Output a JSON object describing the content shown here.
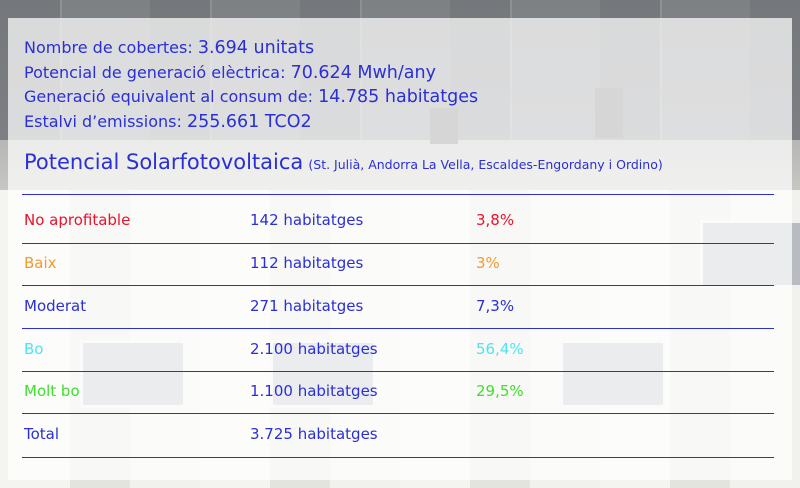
{
  "stats": [
    {
      "label": "Nombre de cobertes:",
      "value": "3.694 unitats"
    },
    {
      "label": "Potencial de generació elèctrica:",
      "value": "70.624 Mwh/any"
    },
    {
      "label": "Generació equivalent al consum de:",
      "value": "14.785 habitatges"
    },
    {
      "label": "Estalvi d’emissions:",
      "value": "255.661 TCO2"
    }
  ],
  "title": "Potencial Solarfotovoltaica",
  "subtitle": "(St. Julià, Andorra La Vella, Escaldes-Engordany i Ordino)",
  "rows": [
    {
      "category": "No aprofitable",
      "dwellings": "142 habitatges",
      "percent": "3,8%",
      "color": "#e8132c"
    },
    {
      "category": "Baix",
      "dwellings": "112 habitatges",
      "percent": "3%",
      "color": "#f29a2e"
    },
    {
      "category": "Moderat",
      "dwellings": "271 habitatges",
      "percent": "7,3%",
      "color": "#2a2fd6"
    },
    {
      "category": "Bo",
      "dwellings": "2.100  habitatges",
      "percent": "56,4%",
      "color": "#4fe3ef"
    },
    {
      "category": "Molt bo",
      "dwellings": "1.100  habitatges",
      "percent": "29,5%",
      "color": "#3fe02c"
    },
    {
      "category": "Total",
      "dwellings": "3.725 habitatges",
      "percent": "",
      "color": "#2a2fd6"
    }
  ],
  "colors": {
    "text_blue": "#2a2fd6"
  }
}
